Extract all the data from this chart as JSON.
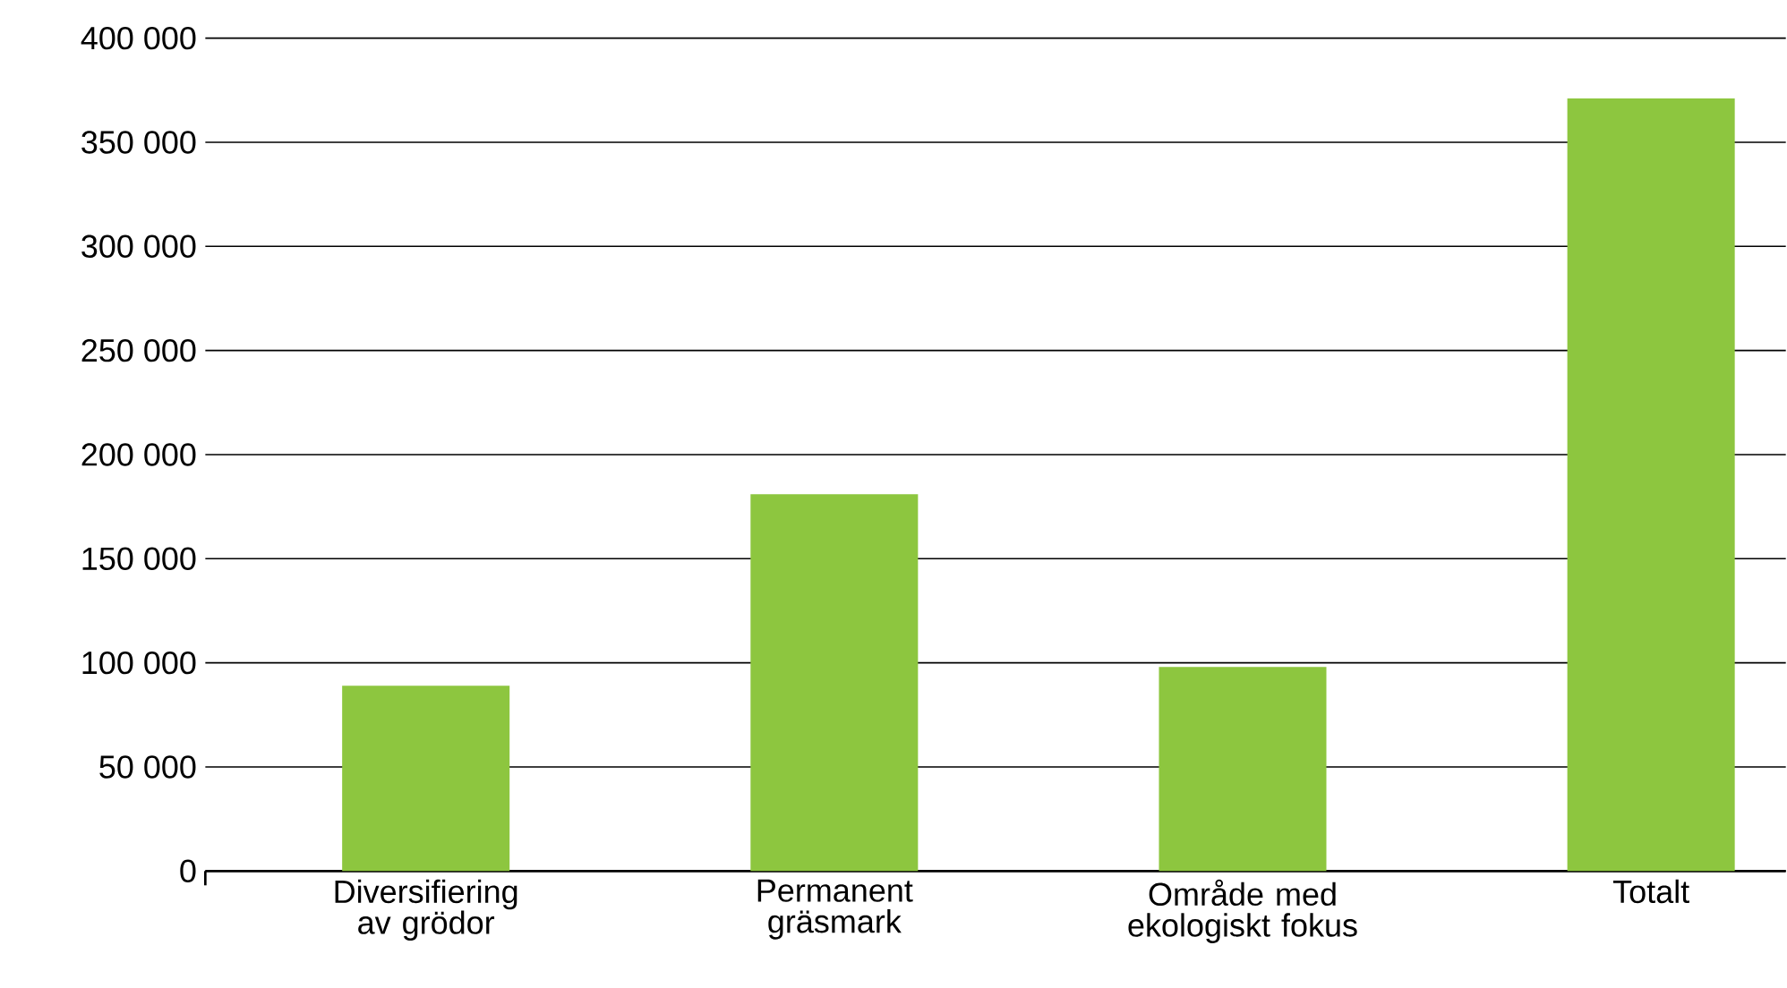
{
  "chart_data": {
    "type": "bar",
    "categories": [
      "Diversifiering av grödor",
      "Permanent gräsmark",
      "Område med ekologiskt fokus",
      "Totalt"
    ],
    "values": [
      89000,
      181000,
      98000,
      371000
    ],
    "color": "#8dc63f",
    "ylim": [
      0,
      400000
    ],
    "yticks": [
      {
        "value": 0,
        "label": "0"
      },
      {
        "value": 50000,
        "label": "50 000"
      },
      {
        "value": 100000,
        "label": "100 000"
      },
      {
        "value": 150000,
        "label": "150 000"
      },
      {
        "value": 200000,
        "label": "200 000"
      },
      {
        "value": 250000,
        "label": "250 000"
      },
      {
        "value": 300000,
        "label": "300 000"
      },
      {
        "value": 350000,
        "label": "350 000"
      },
      {
        "value": 400000,
        "label": "400 000"
      }
    ],
    "grid": "y"
  }
}
